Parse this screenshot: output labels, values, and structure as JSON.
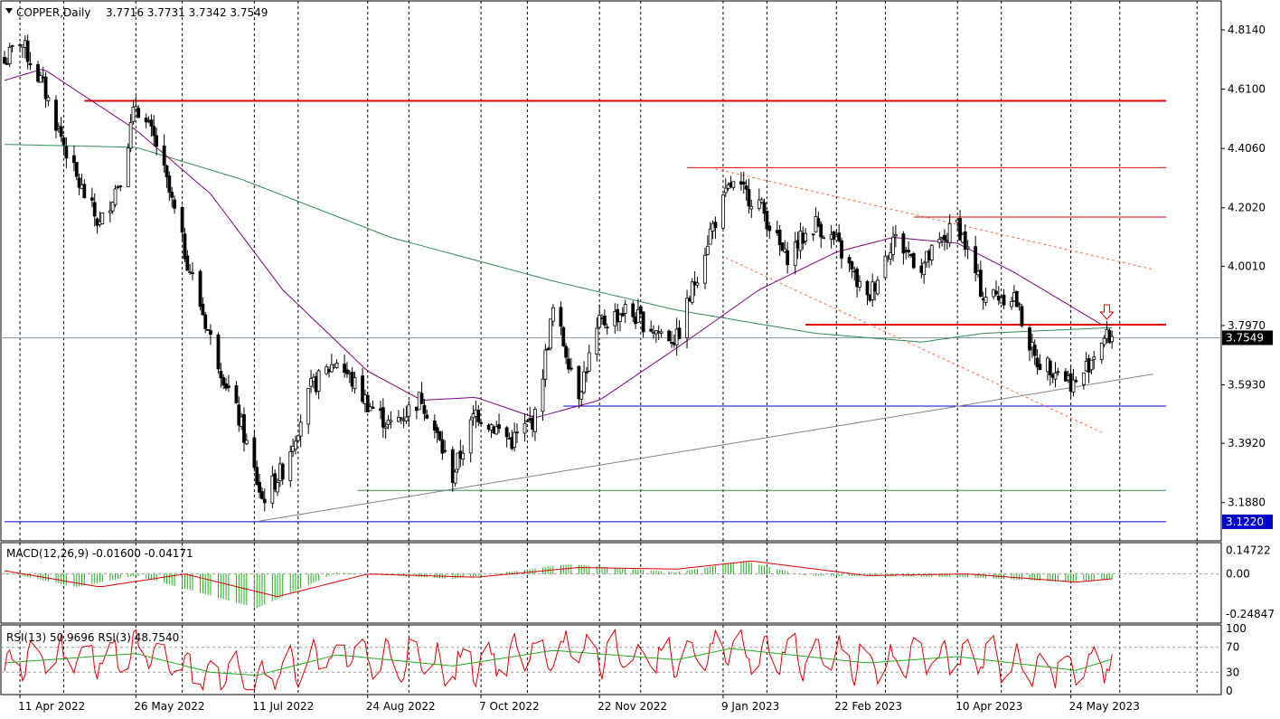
{
  "header": {
    "symbol": "COPPER,Daily",
    "ohlc": "3.7716 3.7731 3.7342 3.7549"
  },
  "indicators": {
    "macd_label": "MACD(12,26,9) -0.01600 -0.04171",
    "rsi_label": "RSI(13) 50.9696  RSI(3) 48.7540"
  },
  "price_axis": {
    "ticks": [
      "4.8140",
      "4.6100",
      "4.4060",
      "4.2020",
      "4.0010",
      "3.7970",
      "3.5930",
      "3.3920",
      "3.1880"
    ],
    "current_price": "3.7549",
    "support_price": "3.1220"
  },
  "macd_axis": {
    "ticks": [
      "0.14722",
      "0.00",
      "-0.24847"
    ]
  },
  "rsi_axis": {
    "ticks": [
      "100",
      "70",
      "30",
      "0"
    ]
  },
  "time_axis": {
    "labels": [
      "11 Apr 2022",
      "26 May 2022",
      "11 Jul 2022",
      "24 Aug 2022",
      "7 Oct 2022",
      "22 Nov 2022",
      "9 Jan 2023",
      "22 Feb 2023",
      "10 Apr 2023",
      "24 May 2023"
    ]
  },
  "colors": {
    "bull": "#ffffff",
    "bear": "#000000",
    "candle_outline": "#000000",
    "sma_fast": "#800080",
    "sma_slow": "#2e8b57",
    "resistance": "#e00000",
    "support": "#0000cc",
    "trend": "#808080",
    "channel": "#ff6a3d",
    "macd_hist": "#22aa22",
    "macd_signal": "#dd0000",
    "rsi13": "#22aa22",
    "rsi3": "#dd0000",
    "price_tag_bg": "#000000",
    "support_tag_bg": "#0000cc"
  },
  "chart_data": {
    "type": "candlestick",
    "title": "COPPER,Daily",
    "y_range": [
      3.1,
      4.87
    ],
    "y_ticks": [
      4.814,
      4.61,
      4.406,
      4.202,
      4.001,
      3.797,
      3.593,
      3.392,
      3.188
    ],
    "x_labels": [
      "11 Apr 2022",
      "26 May 2022",
      "11 Jul 2022",
      "24 Aug 2022",
      "7 Oct 2022",
      "22 Nov 2022",
      "9 Jan 2023",
      "22 Feb 2023",
      "10 Apr 2023",
      "24 May 2023"
    ],
    "close_path_anchors": [
      {
        "date": "2022-04-05",
        "close": 4.7
      },
      {
        "date": "2022-04-11",
        "close": 4.78
      },
      {
        "date": "2022-04-20",
        "close": 4.62
      },
      {
        "date": "2022-05-03",
        "close": 4.3
      },
      {
        "date": "2022-05-12",
        "close": 4.14
      },
      {
        "date": "2022-05-20",
        "close": 4.31
      },
      {
        "date": "2022-05-26",
        "close": 4.56
      },
      {
        "date": "2022-06-03",
        "close": 4.42
      },
      {
        "date": "2022-06-14",
        "close": 4.05
      },
      {
        "date": "2022-06-24",
        "close": 3.75
      },
      {
        "date": "2022-07-06",
        "close": 3.45
      },
      {
        "date": "2022-07-14",
        "close": 3.2
      },
      {
        "date": "2022-07-22",
        "close": 3.3
      },
      {
        "date": "2022-08-02",
        "close": 3.58
      },
      {
        "date": "2022-08-12",
        "close": 3.68
      },
      {
        "date": "2022-08-24",
        "close": 3.53
      },
      {
        "date": "2022-09-02",
        "close": 3.45
      },
      {
        "date": "2022-09-14",
        "close": 3.55
      },
      {
        "date": "2022-09-26",
        "close": 3.28
      },
      {
        "date": "2022-10-05",
        "close": 3.5
      },
      {
        "date": "2022-10-19",
        "close": 3.4
      },
      {
        "date": "2022-10-28",
        "close": 3.48
      },
      {
        "date": "2022-11-04",
        "close": 3.85
      },
      {
        "date": "2022-11-14",
        "close": 3.57
      },
      {
        "date": "2022-11-22",
        "close": 3.8
      },
      {
        "date": "2022-12-02",
        "close": 3.85
      },
      {
        "date": "2022-12-14",
        "close": 3.78
      },
      {
        "date": "2022-12-22",
        "close": 3.75
      },
      {
        "date": "2023-01-04",
        "close": 4.12
      },
      {
        "date": "2023-01-12",
        "close": 4.28
      },
      {
        "date": "2023-01-23",
        "close": 4.22
      },
      {
        "date": "2023-02-02",
        "close": 4.03
      },
      {
        "date": "2023-02-14",
        "close": 4.15
      },
      {
        "date": "2023-02-22",
        "close": 4.08
      },
      {
        "date": "2023-03-06",
        "close": 3.88
      },
      {
        "date": "2023-03-16",
        "close": 4.1
      },
      {
        "date": "2023-03-27",
        "close": 4.0
      },
      {
        "date": "2023-04-10",
        "close": 4.15
      },
      {
        "date": "2023-04-20",
        "close": 3.9
      },
      {
        "date": "2023-05-02",
        "close": 3.9
      },
      {
        "date": "2023-05-10",
        "close": 3.68
      },
      {
        "date": "2023-05-18",
        "close": 3.65
      },
      {
        "date": "2023-05-26",
        "close": 3.59
      },
      {
        "date": "2023-06-05",
        "close": 3.75
      },
      {
        "date": "2023-06-09",
        "close": 3.76
      }
    ],
    "sma_fast_anchors": [
      {
        "date": "2022-04-05",
        "value": 4.64
      },
      {
        "date": "2022-04-20",
        "value": 4.68
      },
      {
        "date": "2022-05-26",
        "value": 4.47
      },
      {
        "date": "2022-06-24",
        "value": 4.25
      },
      {
        "date": "2022-07-22",
        "value": 3.92
      },
      {
        "date": "2022-08-24",
        "value": 3.64
      },
      {
        "date": "2022-09-14",
        "value": 3.54
      },
      {
        "date": "2022-10-05",
        "value": 3.55
      },
      {
        "date": "2022-10-28",
        "value": 3.48
      },
      {
        "date": "2022-11-22",
        "value": 3.54
      },
      {
        "date": "2022-12-22",
        "value": 3.72
      },
      {
        "date": "2023-01-23",
        "value": 3.92
      },
      {
        "date": "2023-02-22",
        "value": 4.05
      },
      {
        "date": "2023-03-16",
        "value": 4.1
      },
      {
        "date": "2023-04-10",
        "value": 4.08
      },
      {
        "date": "2023-05-02",
        "value": 3.98
      },
      {
        "date": "2023-06-05",
        "value": 3.8
      }
    ],
    "sma_slow_anchors": [
      {
        "date": "2022-04-05",
        "value": 4.42
      },
      {
        "date": "2022-05-26",
        "value": 4.41
      },
      {
        "date": "2022-07-06",
        "value": 4.3
      },
      {
        "date": "2022-09-02",
        "value": 4.1
      },
      {
        "date": "2022-11-04",
        "value": 3.95
      },
      {
        "date": "2022-12-22",
        "value": 3.85
      },
      {
        "date": "2023-02-14",
        "value": 3.77
      },
      {
        "date": "2023-03-27",
        "value": 3.74
      },
      {
        "date": "2023-04-20",
        "value": 3.77
      },
      {
        "date": "2023-06-09",
        "value": 3.79
      }
    ],
    "horizontal_levels": [
      {
        "price": 4.57,
        "from": "2022-05-06",
        "to": "2023-06-30",
        "color": "resistance",
        "width": 2
      },
      {
        "price": 4.34,
        "from": "2022-12-26",
        "to": "2023-06-30",
        "color": "resistance",
        "width": 1
      },
      {
        "price": 4.17,
        "from": "2023-03-24",
        "to": "2023-06-30",
        "color": "resistance",
        "width": 1
      },
      {
        "price": 3.8,
        "from": "2023-02-10",
        "to": "2023-06-30",
        "color": "resistance",
        "width": 2
      },
      {
        "price": 3.52,
        "from": "2022-11-08",
        "to": "2023-06-30",
        "color": "support",
        "width": 1
      },
      {
        "price": 3.23,
        "from": "2022-08-20",
        "to": "2023-06-30",
        "color": "sma_slow",
        "width": 1
      },
      {
        "price": 3.122,
        "from": "2022-04-05",
        "to": "2023-06-30",
        "color": "support",
        "width": 1
      }
    ],
    "trendlines": [
      {
        "from": {
          "date": "2022-07-12",
          "price": 3.123
        },
        "to": {
          "date": "2023-06-25",
          "price": 3.63
        },
        "style": "trend"
      },
      {
        "from": {
          "date": "2023-01-04",
          "price": 4.34
        },
        "to": {
          "date": "2023-06-25",
          "price": 3.99
        },
        "style": "channel"
      },
      {
        "from": {
          "date": "2023-01-10",
          "price": 4.03
        },
        "to": {
          "date": "2023-06-05",
          "price": 3.43
        },
        "style": "channel"
      }
    ],
    "signal_arrow": {
      "date": "2023-06-07",
      "direction": "down"
    },
    "macd": {
      "y_range": [
        -0.27,
        0.16
      ],
      "histogram_anchors": [
        {
          "date": "2022-04-05",
          "value": 0.01
        },
        {
          "date": "2022-05-03",
          "value": -0.08
        },
        {
          "date": "2022-05-26",
          "value": -0.01
        },
        {
          "date": "2022-07-12",
          "value": -0.21
        },
        {
          "date": "2022-08-12",
          "value": 0.01
        },
        {
          "date": "2022-09-26",
          "value": -0.03
        },
        {
          "date": "2022-11-10",
          "value": 0.06
        },
        {
          "date": "2022-12-22",
          "value": 0.01
        },
        {
          "date": "2023-01-17",
          "value": 0.08
        },
        {
          "date": "2023-02-10",
          "value": -0.01
        },
        {
          "date": "2023-04-14",
          "value": -0.02
        },
        {
          "date": "2023-05-22",
          "value": -0.05
        },
        {
          "date": "2023-06-09",
          "value": -0.03
        }
      ],
      "signal_anchors": [
        {
          "date": "2022-04-05",
          "value": 0.02
        },
        {
          "date": "2022-05-12",
          "value": -0.08
        },
        {
          "date": "2022-06-14",
          "value": 0.0
        },
        {
          "date": "2022-07-20",
          "value": -0.14
        },
        {
          "date": "2022-08-24",
          "value": 0.0
        },
        {
          "date": "2022-10-05",
          "value": -0.02
        },
        {
          "date": "2022-11-14",
          "value": 0.04
        },
        {
          "date": "2022-12-22",
          "value": 0.03
        },
        {
          "date": "2023-01-20",
          "value": 0.08
        },
        {
          "date": "2023-03-06",
          "value": -0.01
        },
        {
          "date": "2023-04-14",
          "value": 0.0
        },
        {
          "date": "2023-05-26",
          "value": -0.05
        },
        {
          "date": "2023-06-09",
          "value": -0.03
        }
      ]
    },
    "rsi": {
      "y_range": [
        0,
        100
      ],
      "levels": [
        70,
        30
      ],
      "rsi13_anchors": [
        {
          "date": "2022-04-05",
          "value": 45
        },
        {
          "date": "2022-05-26",
          "value": 60
        },
        {
          "date": "2022-06-24",
          "value": 30
        },
        {
          "date": "2022-07-12",
          "value": 25
        },
        {
          "date": "2022-08-12",
          "value": 58
        },
        {
          "date": "2022-09-26",
          "value": 40
        },
        {
          "date": "2022-11-04",
          "value": 65
        },
        {
          "date": "2022-12-22",
          "value": 50
        },
        {
          "date": "2023-01-12",
          "value": 68
        },
        {
          "date": "2023-03-06",
          "value": 45
        },
        {
          "date": "2023-04-10",
          "value": 55
        },
        {
          "date": "2023-05-26",
          "value": 33
        },
        {
          "date": "2023-06-09",
          "value": 51
        }
      ]
    }
  }
}
